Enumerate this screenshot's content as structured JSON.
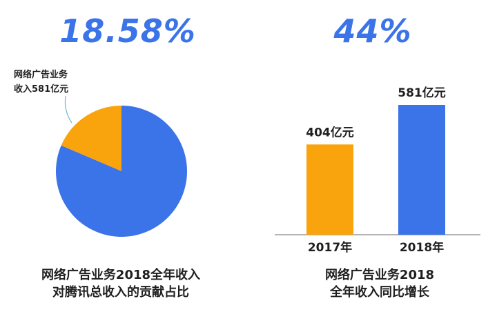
{
  "chart_data": [
    {
      "type": "pie",
      "title": "18.58%",
      "caption": [
        "网络广告业务2018全年收入",
        "对腾讯总收入的贡献占比"
      ],
      "annotation": [
        "网络广告业务",
        "收入581亿元"
      ],
      "slices": [
        {
          "value": 18.58,
          "color": "#f9a40d"
        },
        {
          "value": 81.42,
          "color": "#3b73e8"
        }
      ]
    },
    {
      "type": "bar",
      "title": "44%",
      "caption": [
        "网络广告业务2018",
        "全年收入同比增长"
      ],
      "categories": [
        "2017年",
        "2018年"
      ],
      "values": [
        404,
        581
      ],
      "data_labels": [
        "404亿元",
        "581亿元"
      ],
      "colors": [
        "#f9a40d",
        "#3b73e8"
      ],
      "ylim": [
        0,
        581
      ]
    }
  ]
}
